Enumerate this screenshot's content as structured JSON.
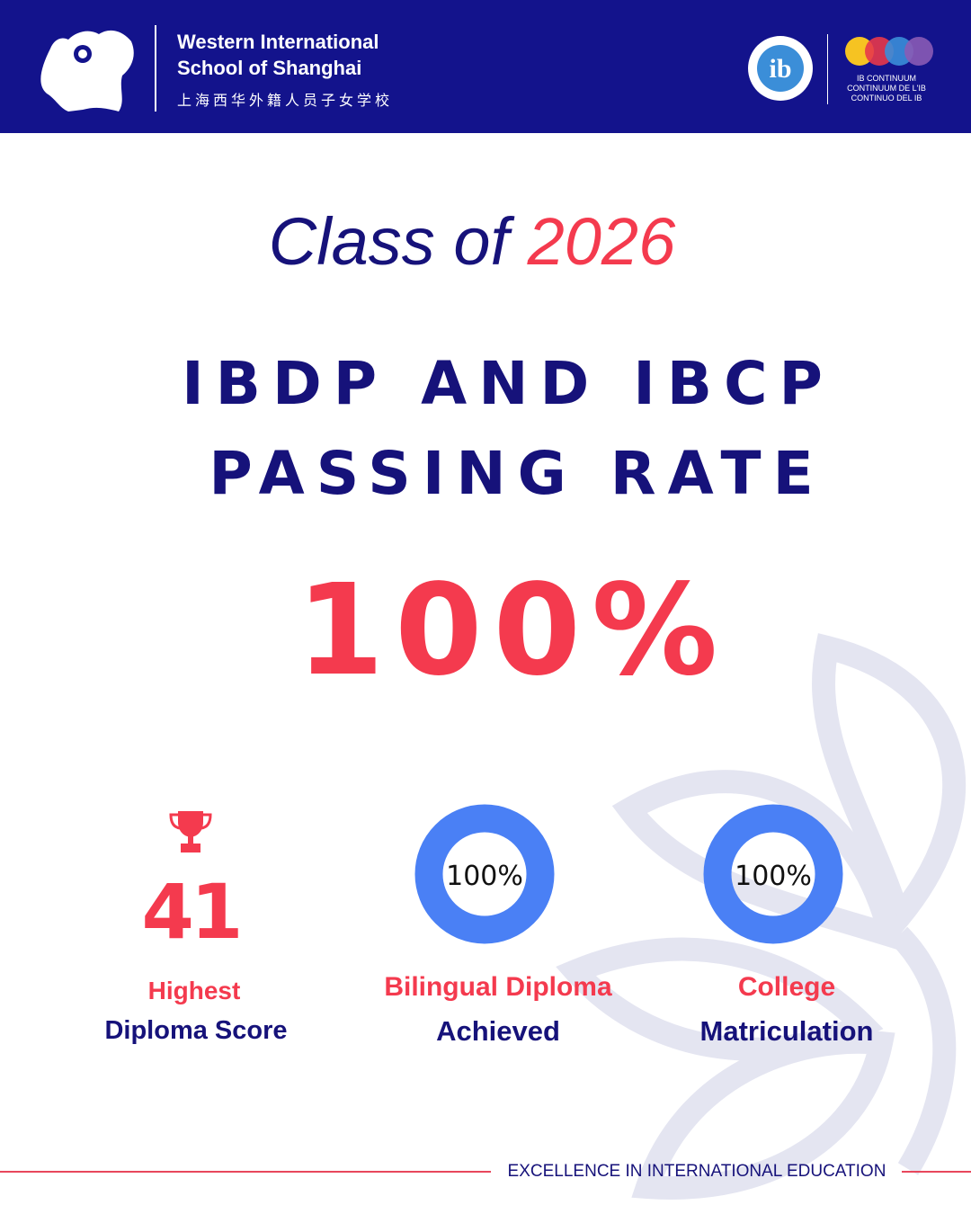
{
  "header": {
    "school_name_line1": "Western International",
    "school_name_line2": "School of Shanghai",
    "school_name_chinese": "上海西华外籍人员子女学校",
    "ib_mark": "ib",
    "ib_continuum": [
      "IB CONTINUUM",
      "CONTINUUM DE L'IB",
      "CONTINUO DEL IB"
    ]
  },
  "headline": {
    "prefix": "Class of",
    "year": "2026"
  },
  "title": [
    "IBDP AND IBCP",
    "PASSING RATE"
  ],
  "passing_rate": "100%",
  "stats": [
    {
      "value": "41",
      "label_line1": "Highest",
      "label_line2": "Diploma Score"
    },
    {
      "value": "100%",
      "label_line1": "Bilingual Diploma",
      "label_line2": "Achieved"
    },
    {
      "value": "100%",
      "label_line1": "College",
      "label_line2": "Matriculation"
    }
  ],
  "footer": {
    "tagline": "EXCELLENCE IN INTERNATIONAL EDUCATION"
  }
}
